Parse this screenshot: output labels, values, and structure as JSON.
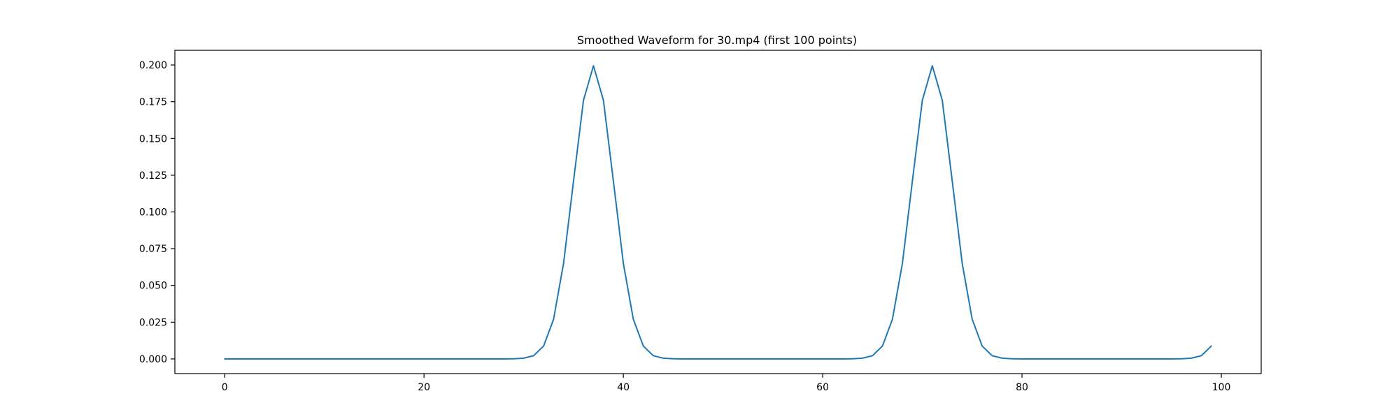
{
  "chart_data": {
    "type": "line",
    "title": "Smoothed Waveform for 30.mp4 (first 100 points)",
    "xlabel": "",
    "ylabel": "",
    "xlim": [
      -5,
      104
    ],
    "ylim": [
      -0.01,
      0.21
    ],
    "x_ticks": [
      0,
      20,
      40,
      60,
      80,
      100
    ],
    "x_tick_labels": [
      "0",
      "20",
      "40",
      "60",
      "80",
      "100"
    ],
    "y_ticks": [
      0.0,
      0.025,
      0.05,
      0.075,
      0.1,
      0.125,
      0.15,
      0.175,
      0.2
    ],
    "y_tick_labels": [
      "0.000",
      "0.025",
      "0.050",
      "0.075",
      "0.100",
      "0.125",
      "0.150",
      "0.175",
      "0.200"
    ],
    "grid": false,
    "line_color": "#1f77b4",
    "series": [
      {
        "x": [
          0,
          1,
          2,
          3,
          4,
          5,
          6,
          7,
          8,
          9,
          10,
          11,
          12,
          13,
          14,
          15,
          16,
          17,
          18,
          19,
          20,
          21,
          22,
          23,
          24,
          25,
          26,
          27,
          28,
          29,
          30,
          31,
          32,
          33,
          34,
          35,
          36,
          37,
          38,
          39,
          40,
          41,
          42,
          43,
          44,
          45,
          46,
          47,
          48,
          49,
          50,
          51,
          52,
          53,
          54,
          55,
          56,
          57,
          58,
          59,
          60,
          61,
          62,
          63,
          64,
          65,
          66,
          67,
          68,
          69,
          70,
          71,
          72,
          73,
          74,
          75,
          76,
          77,
          78,
          79,
          80,
          81,
          82,
          83,
          84,
          85,
          86,
          87,
          88,
          89,
          90,
          91,
          92,
          93,
          94,
          95,
          96,
          97,
          98,
          99
        ],
        "values": [
          0,
          0,
          0,
          0,
          0,
          0,
          0,
          0,
          0,
          0,
          0,
          0,
          0,
          0,
          0,
          0,
          0,
          0,
          0,
          0,
          0,
          0,
          0,
          0,
          0,
          0,
          0,
          0,
          0,
          0.0001,
          0.0005,
          0.0022,
          0.0088,
          0.027,
          0.065,
          0.121,
          0.176,
          0.1995,
          0.176,
          0.121,
          0.065,
          0.027,
          0.0088,
          0.0022,
          0.0005,
          0.0001,
          0,
          0,
          0,
          0,
          0,
          0,
          0,
          0,
          0,
          0,
          0,
          0,
          0,
          0,
          0,
          0,
          0,
          0.0001,
          0.0005,
          0.0022,
          0.0088,
          0.027,
          0.065,
          0.121,
          0.176,
          0.1995,
          0.176,
          0.121,
          0.065,
          0.027,
          0.0088,
          0.0022,
          0.0005,
          0.0001,
          0,
          0,
          0,
          0,
          0,
          0,
          0,
          0,
          0,
          0,
          0,
          0,
          0,
          0,
          0,
          0,
          0.0001,
          0.0005,
          0.0022,
          0.0088
        ]
      }
    ]
  }
}
